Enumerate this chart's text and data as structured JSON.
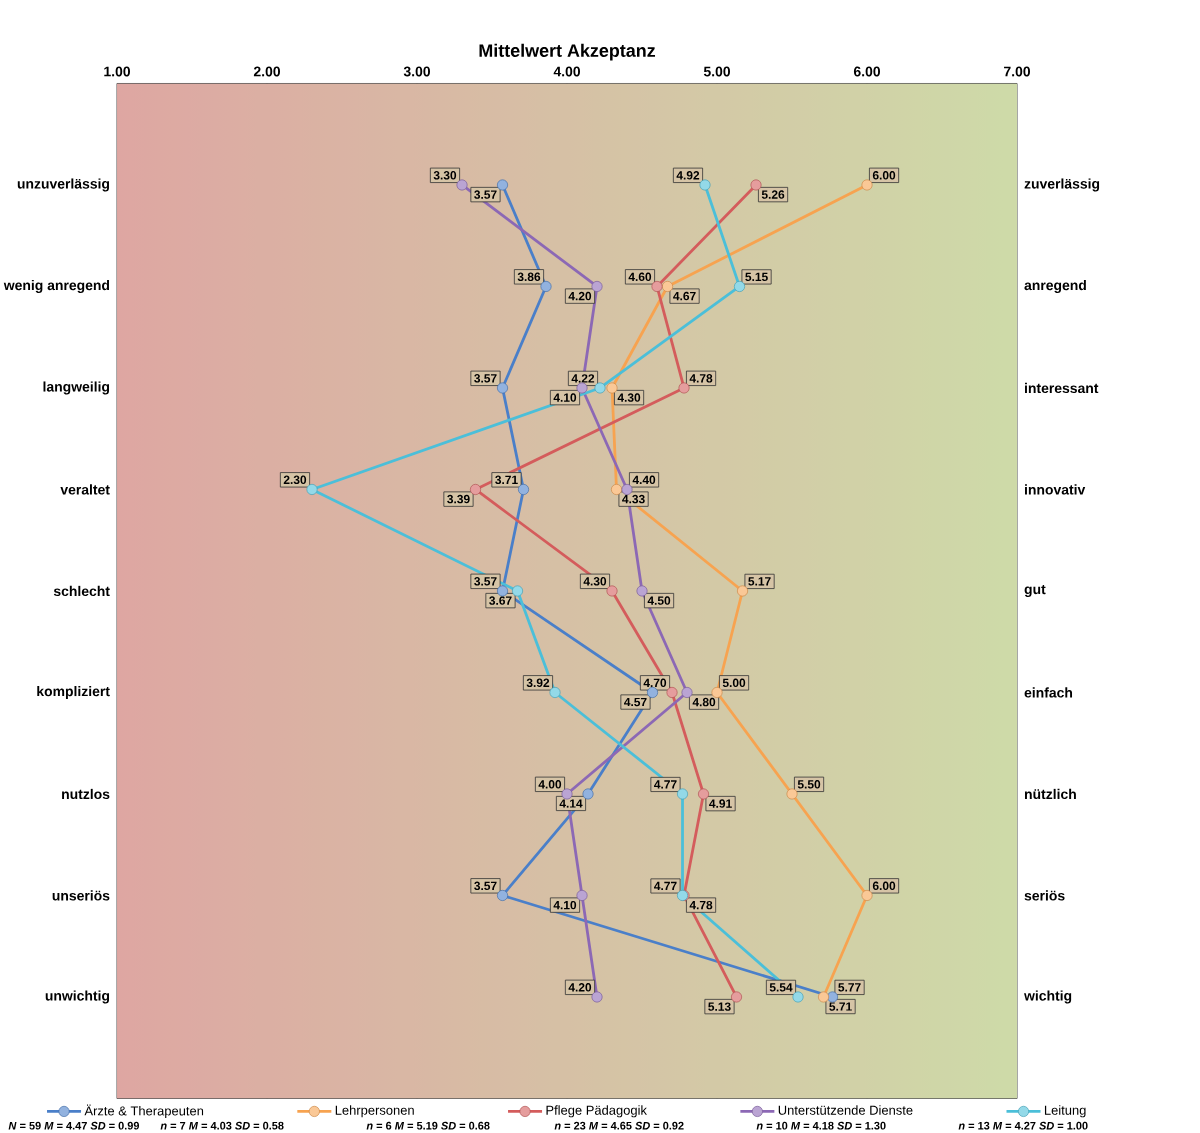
{
  "chart_data": {
    "type": "line",
    "title": "Mittelwert Akzeptanz",
    "orientation": "horizontal",
    "grid": true,
    "legend": "bottom",
    "marker": "circle",
    "line_style": "solid",
    "categories": [
      "unzuverlässig",
      "wenig anregend",
      "langweilig",
      "veraltet",
      "schlecht",
      "kompliziert",
      "nutzlos",
      "unseriös",
      "unwichtig"
    ],
    "y2_categories": [
      "zuverlässig",
      "anregend",
      "interessant",
      "innovativ",
      "gut",
      "einfach",
      "nützlich",
      "seriös",
      "wichtig"
    ],
    "xlim": [
      1,
      7
    ],
    "xticks": [
      {
        "value": 1,
        "label": "1.00"
      },
      {
        "value": 2,
        "label": "2.00"
      },
      {
        "value": 3,
        "label": "3.00"
      },
      {
        "value": 4,
        "label": "4.00"
      },
      {
        "value": 5,
        "label": "5.00"
      },
      {
        "value": 6,
        "label": "6.00"
      },
      {
        "value": 7,
        "label": "7.00"
      }
    ],
    "series": [
      {
        "name": "Ärzte & Therapeuten",
        "color": "#4a7fc9",
        "values": [
          3.57,
          3.86,
          3.57,
          3.71,
          3.57,
          4.57,
          4.14,
          3.57,
          5.77
        ],
        "value_labels": [
          "3.57",
          "3.86",
          "3.57",
          "3.71",
          "3.57",
          "4.57",
          "4.14",
          "3.57",
          "5.77"
        ]
      },
      {
        "name": "Lehrpersonen",
        "color": "#f7a350",
        "values": [
          6.0,
          4.67,
          4.3,
          4.33,
          5.17,
          5.0,
          5.5,
          6.0,
          5.71
        ],
        "value_labels": [
          "6.00",
          "4.67",
          "4.30",
          "4.33",
          "5.17",
          "5.00",
          "5.50",
          "6.00",
          "5.71"
        ]
      },
      {
        "name": "Pflege Pädagogik",
        "color": "#d45c5c",
        "values": [
          5.26,
          4.6,
          4.78,
          3.39,
          4.3,
          4.7,
          4.91,
          4.78,
          5.13
        ],
        "value_labels": [
          "5.26",
          "4.60",
          "4.78",
          "3.39",
          "4.30",
          "4.70",
          "4.91",
          "4.78",
          "5.13"
        ]
      },
      {
        "name": "Unterstützende Dienste",
        "color": "#8c68b5",
        "values": [
          3.3,
          4.2,
          4.1,
          4.4,
          4.5,
          4.8,
          4.0,
          4.1,
          4.2
        ],
        "value_labels": [
          "3.30",
          "4.20",
          "4.10",
          "4.40",
          "4.50",
          "4.80",
          "4.00",
          "4.10",
          "4.20"
        ]
      },
      {
        "name": "Leitung",
        "color": "#4bbfd9",
        "values": [
          4.92,
          5.15,
          4.22,
          2.3,
          3.67,
          3.92,
          4.77,
          4.77,
          5.54
        ],
        "value_labels": [
          "4.92",
          "5.15",
          "4.22",
          "2.30",
          "3.67",
          "3.92",
          "4.77",
          "4.77",
          "5.54"
        ]
      }
    ],
    "annotations": [
      "*N* = 59 *M* = 4.47 *SD* = 0.99",
      "*n* = 7 *M* = 4.03 *SD* = 0.58",
      "*n* = 6 *M* = 5.19 *SD* = 0.68",
      "*n* = 23 *M* = 4.65 *SD* = 0.92",
      "*n* = 10 *M* = 4.18 *SD* = 1.30",
      "*n* = 13 *M* = 4.27 *SD* = 1.00"
    ]
  }
}
